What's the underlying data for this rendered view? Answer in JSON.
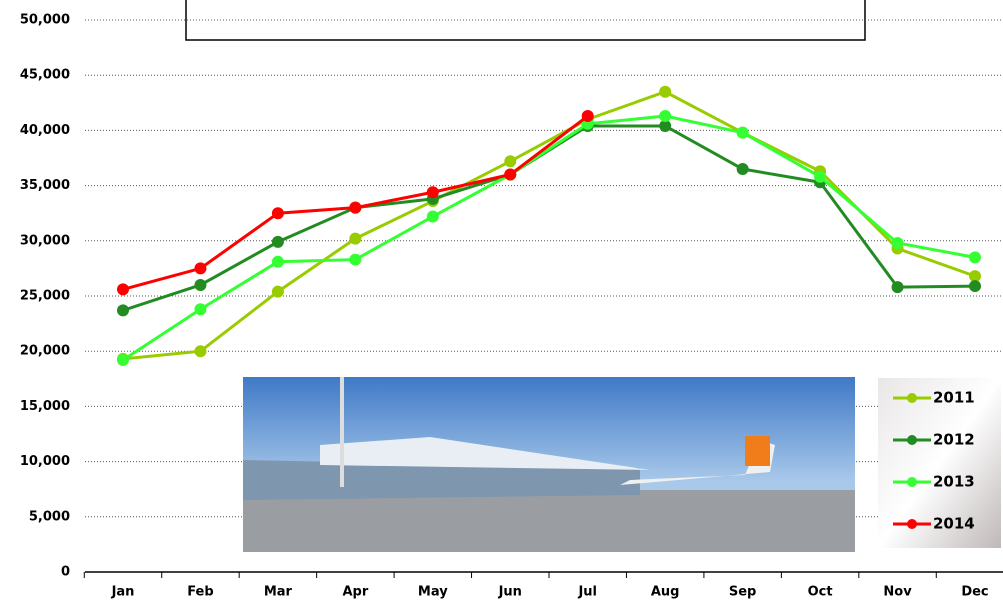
{
  "chart_data": {
    "type": "line",
    "categories": [
      "Jan",
      "Feb",
      "Mar",
      "Apr",
      "May",
      "Jun",
      "Jul",
      "Aug",
      "Sep",
      "Oct",
      "Nov",
      "Dec"
    ],
    "series": [
      {
        "name": "2011",
        "color": "#99cc00",
        "values": [
          19300,
          20000,
          25400,
          30200,
          33600,
          37200,
          41000,
          43500,
          39800,
          36300,
          29300,
          26800
        ]
      },
      {
        "name": "2012",
        "color": "#228b22",
        "values": [
          23700,
          26000,
          29900,
          33000,
          33800,
          36000,
          40400,
          40400,
          36500,
          35300,
          25800,
          25900
        ]
      },
      {
        "name": "2013",
        "color": "#33ff33",
        "values": [
          19200,
          23800,
          28100,
          28300,
          32200,
          36000,
          40600,
          41300,
          39800,
          35800,
          29800,
          28500
        ]
      },
      {
        "name": "2014",
        "color": "#ff0000",
        "values": [
          25600,
          27500,
          32500,
          33000,
          34400,
          36000,
          41300,
          null,
          null,
          null,
          null,
          null
        ]
      }
    ],
    "ylim": [
      0,
      50000
    ],
    "yticks": [
      0,
      {
        "value": 5000,
        "label": "5,000"
      },
      {
        "value": 10000,
        "label": "10,000"
      },
      {
        "value": 15000,
        "label": "15,000"
      },
      {
        "value": 20000,
        "label": "20,000"
      },
      {
        "value": 25000,
        "label": "25,000"
      },
      {
        "value": 30000,
        "label": "30,000"
      },
      {
        "value": 35000,
        "label": "35,000"
      },
      {
        "value": 40000,
        "label": "40,000"
      },
      {
        "value": 45000,
        "label": "45,000"
      },
      {
        "value": 50000,
        "label": "50,000"
      }
    ],
    "grid": true
  }
}
